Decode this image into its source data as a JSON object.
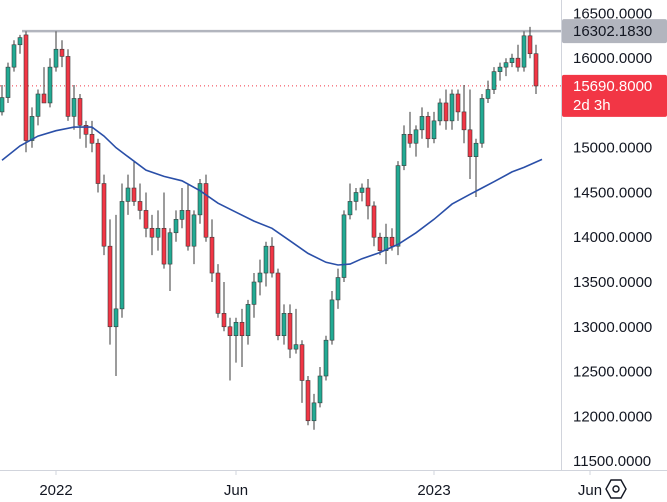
{
  "chart_data": {
    "type": "candlestick",
    "title": "",
    "ylim": [
      11400,
      16650
    ],
    "y_ticks": [
      "16500.0000",
      "16000.0000",
      "15500.0000",
      "15000.0000",
      "14500.0000",
      "14000.0000",
      "13500.0000",
      "13000.0000",
      "12500.0000",
      "12000.0000",
      "11500.0000"
    ],
    "x_ticks": [
      "2022",
      "Jun",
      "2023",
      "Jun"
    ],
    "x_tick_index": [
      9,
      39,
      72,
      98
    ],
    "resistance_level": 16302.183,
    "current_price": 15690.8,
    "price_tag": {
      "value": "15690.8000",
      "countdown": "2d 3h"
    },
    "resistance_tag": {
      "value": "16302.1830"
    },
    "up_color": "#22ab94",
    "down_color": "#f23645",
    "ma_color": "#2a4fa8",
    "candles": [
      [
        15400,
        15700,
        15360,
        15560
      ],
      [
        15560,
        15950,
        15500,
        15900
      ],
      [
        15900,
        16200,
        15850,
        16150
      ],
      [
        16150,
        16260,
        16050,
        16230
      ],
      [
        16260,
        16300,
        14950,
        15080
      ],
      [
        15080,
        15450,
        15000,
        15350
      ],
      [
        15350,
        15650,
        15250,
        15600
      ],
      [
        15600,
        15900,
        15550,
        15500
      ],
      [
        15500,
        16000,
        15450,
        15900
      ],
      [
        15900,
        16300,
        15850,
        16100
      ],
      [
        16100,
        16200,
        15900,
        16020
      ],
      [
        16020,
        16100,
        15300,
        15350
      ],
      [
        15350,
        15700,
        15200,
        15550
      ],
      [
        15550,
        15600,
        15100,
        15250
      ],
      [
        15250,
        15300,
        15000,
        15150
      ],
      [
        15150,
        15300,
        14950,
        15050
      ],
      [
        15050,
        15100,
        14500,
        14600
      ],
      [
        14600,
        14700,
        13800,
        13900
      ],
      [
        13900,
        14200,
        12800,
        13000
      ],
      [
        13000,
        14250,
        12450,
        13200
      ],
      [
        13200,
        14600,
        13100,
        14400
      ],
      [
        14400,
        14700,
        14250,
        14550
      ],
      [
        14550,
        14850,
        14350,
        14400
      ],
      [
        14400,
        14600,
        14200,
        14300
      ],
      [
        14300,
        14500,
        14000,
        14100
      ],
      [
        14100,
        14250,
        13800,
        14000
      ],
      [
        14000,
        14300,
        13850,
        14100
      ],
      [
        14100,
        14500,
        13650,
        13700
      ],
      [
        13700,
        14100,
        13400,
        14050
      ],
      [
        14050,
        14300,
        13950,
        14200
      ],
      [
        14200,
        14550,
        14100,
        14300
      ],
      [
        14300,
        14600,
        13850,
        13900
      ],
      [
        13900,
        14300,
        13700,
        14250
      ],
      [
        14250,
        14650,
        14150,
        14600
      ],
      [
        14600,
        14700,
        13950,
        14000
      ],
      [
        14000,
        14200,
        13500,
        13600
      ],
      [
        13600,
        13700,
        13100,
        13150
      ],
      [
        13150,
        13500,
        12950,
        13000
      ],
      [
        13000,
        13100,
        12400,
        12900
      ],
      [
        12900,
        13100,
        12600,
        13050
      ],
      [
        13050,
        13200,
        12550,
        12900
      ],
      [
        12900,
        13300,
        12800,
        13250
      ],
      [
        13250,
        13600,
        13100,
        13500
      ],
      [
        13500,
        13750,
        13350,
        13600
      ],
      [
        13600,
        13950,
        13450,
        13900
      ],
      [
        13900,
        14000,
        13550,
        13600
      ],
      [
        13600,
        13650,
        12850,
        12900
      ],
      [
        12900,
        13250,
        12800,
        13150
      ],
      [
        13150,
        13250,
        12650,
        12750
      ],
      [
        12750,
        13200,
        12700,
        12800
      ],
      [
        12800,
        12850,
        12150,
        12400
      ],
      [
        12400,
        12450,
        11900,
        11950
      ],
      [
        11950,
        12250,
        11850,
        12150
      ],
      [
        12150,
        12550,
        12100,
        12450
      ],
      [
        12450,
        12900,
        12400,
        12850
      ],
      [
        12850,
        13400,
        12800,
        13300
      ],
      [
        13300,
        13650,
        13200,
        13550
      ],
      [
        13550,
        14300,
        13500,
        14250
      ],
      [
        14250,
        14600,
        14200,
        14400
      ],
      [
        14400,
        14550,
        14300,
        14500
      ],
      [
        14500,
        14600,
        14400,
        14550
      ],
      [
        14550,
        14650,
        14200,
        14350
      ],
      [
        14350,
        14400,
        13900,
        14000
      ],
      [
        14000,
        14050,
        13800,
        13850
      ],
      [
        13850,
        14150,
        13700,
        14000
      ],
      [
        14000,
        14100,
        13850,
        13900
      ],
      [
        13900,
        14850,
        13800,
        14800
      ],
      [
        14800,
        15250,
        14750,
        15150
      ],
      [
        15150,
        15400,
        15000,
        15050
      ],
      [
        15050,
        15250,
        14900,
        15200
      ],
      [
        15200,
        15450,
        15100,
        15350
      ],
      [
        15350,
        15400,
        15000,
        15100
      ],
      [
        15100,
        15400,
        15050,
        15300
      ],
      [
        15300,
        15550,
        15250,
        15500
      ],
      [
        15500,
        15650,
        15200,
        15300
      ],
      [
        15300,
        15650,
        15200,
        15600
      ],
      [
        15600,
        15650,
        15300,
        15400
      ],
      [
        15400,
        15700,
        15050,
        15200
      ],
      [
        15200,
        15650,
        14650,
        14900
      ],
      [
        14900,
        15100,
        14450,
        15050
      ],
      [
        15050,
        15600,
        15000,
        15550
      ],
      [
        15550,
        15750,
        15500,
        15650
      ],
      [
        15650,
        15900,
        15600,
        15850
      ],
      [
        15850,
        15950,
        15750,
        15900
      ],
      [
        15900,
        16000,
        15800,
        15950
      ],
      [
        15950,
        16050,
        15900,
        16000
      ],
      [
        16000,
        16150,
        15850,
        15900
      ],
      [
        15900,
        16300,
        15850,
        16250
      ],
      [
        16250,
        16350,
        16000,
        16050
      ],
      [
        16050,
        16150,
        15600,
        15690
      ]
    ],
    "ma": [
      [
        0,
        14860
      ],
      [
        3,
        15020
      ],
      [
        6,
        15130
      ],
      [
        9,
        15190
      ],
      [
        12,
        15230
      ],
      [
        15,
        15230
      ],
      [
        17,
        15130
      ],
      [
        19,
        15000
      ],
      [
        21,
        14900
      ],
      [
        24,
        14750
      ],
      [
        27,
        14680
      ],
      [
        30,
        14630
      ],
      [
        33,
        14520
      ],
      [
        36,
        14380
      ],
      [
        39,
        14280
      ],
      [
        42,
        14180
      ],
      [
        45,
        14100
      ],
      [
        48,
        13960
      ],
      [
        51,
        13820
      ],
      [
        54,
        13720
      ],
      [
        56,
        13690
      ],
      [
        58,
        13700
      ],
      [
        60,
        13760
      ],
      [
        63,
        13830
      ],
      [
        66,
        13920
      ],
      [
        69,
        14050
      ],
      [
        72,
        14200
      ],
      [
        75,
        14370
      ],
      [
        78,
        14480
      ],
      [
        80,
        14550
      ],
      [
        82,
        14620
      ],
      [
        85,
        14730
      ],
      [
        87,
        14780
      ],
      [
        90,
        14870
      ]
    ]
  }
}
